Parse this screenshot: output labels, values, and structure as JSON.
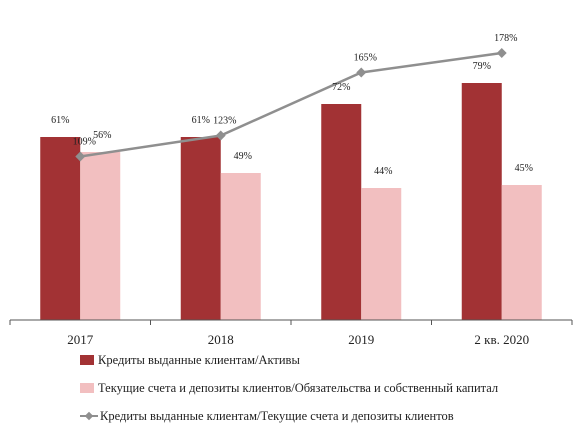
{
  "chart_data": {
    "type": "bar+line",
    "categories": [
      "2017",
      "2018",
      "2019",
      "2 кв. 2020"
    ],
    "series": [
      {
        "name": "Кредиты выданные клиентам/Активы",
        "kind": "bar",
        "axis": "left",
        "color": "#a23234",
        "values": [
          61,
          61,
          72,
          79
        ],
        "labels": [
          "61%",
          "61%",
          "72%",
          "79%"
        ]
      },
      {
        "name": "Текущие счета и депозиты клиентов/Обязательства и собственный капитал",
        "kind": "bar",
        "axis": "left",
        "color": "#f2bfc0",
        "values": [
          56,
          49,
          44,
          45
        ],
        "labels": [
          "56%",
          "49%",
          "44%",
          "45%"
        ]
      },
      {
        "name": "Кредиты выданные клиентам/Текущие счета и депозиты клиентов",
        "kind": "line",
        "axis": "right",
        "color": "#8f8f8f",
        "values": [
          109,
          123,
          165,
          178
        ],
        "labels": [
          "109%",
          "123%",
          "165%",
          "178%"
        ]
      }
    ],
    "ylim": [
      0,
      100
    ],
    "y2lim": [
      0,
      200
    ],
    "grid": false,
    "legend_position": "bottom"
  }
}
